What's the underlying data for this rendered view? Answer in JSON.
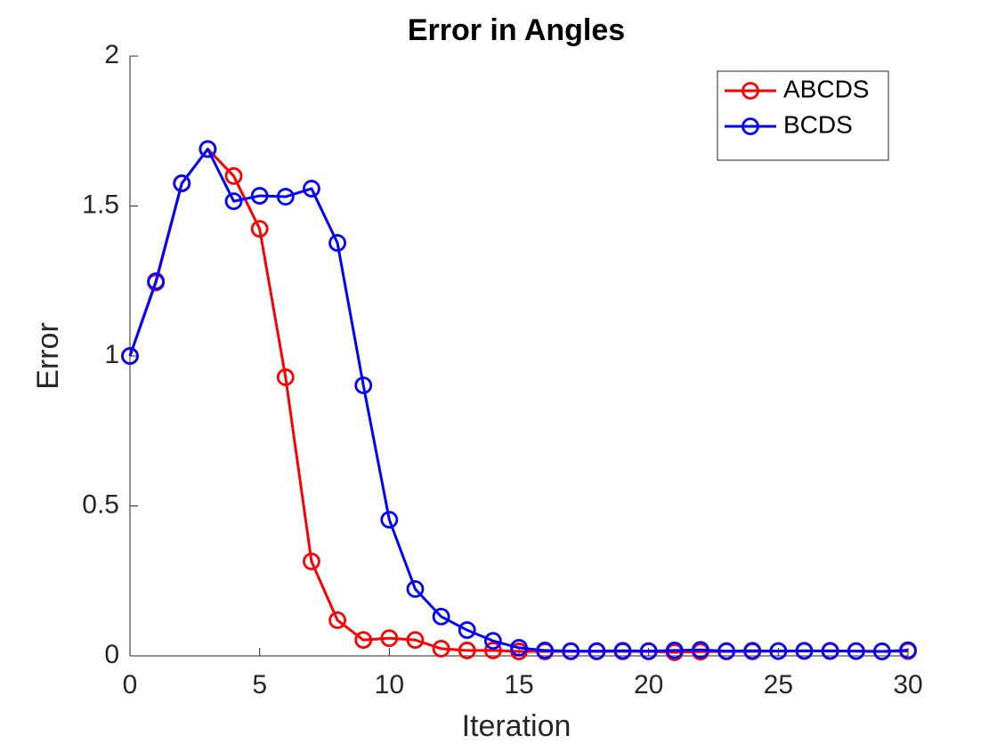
{
  "chart_data": {
    "type": "line",
    "title": "Error in Angles",
    "x_label": "Iteration",
    "y_label": "Error",
    "x": [
      0,
      1,
      2,
      3,
      4,
      5,
      6,
      7,
      8,
      9,
      10,
      11,
      12,
      13,
      14,
      15,
      16,
      17,
      18,
      19,
      20,
      21,
      22,
      23,
      24,
      25,
      26,
      27,
      28,
      29,
      30
    ],
    "series": [
      {
        "name": "ABCDS",
        "color": "#ff0000",
        "values": [
          1.0,
          1.245,
          1.575,
          1.69,
          1.6,
          1.424,
          0.929,
          0.315,
          0.119,
          0.053,
          0.059,
          0.053,
          0.024,
          0.018,
          0.018,
          0.015,
          0.015,
          0.015,
          0.015,
          0.015,
          0.015,
          0.012,
          0.014,
          0.015,
          0.015,
          0.016,
          0.016,
          0.017,
          0.016,
          0.015,
          0.016
        ]
      },
      {
        "name": "BCDS",
        "color": "#0000ff",
        "values": [
          1.0,
          1.249,
          1.576,
          1.69,
          1.516,
          1.534,
          1.531,
          1.558,
          1.377,
          0.902,
          0.454,
          0.223,
          0.131,
          0.086,
          0.05,
          0.027,
          0.018,
          0.016,
          0.016,
          0.017,
          0.016,
          0.018,
          0.02,
          0.016,
          0.017,
          0.016,
          0.017,
          0.016,
          0.016,
          0.015,
          0.019
        ]
      }
    ],
    "xlim": [
      0,
      30
    ],
    "xticks": [
      0,
      5,
      10,
      15,
      20,
      25,
      30
    ],
    "ylim": [
      0,
      2
    ],
    "yticks": [
      0,
      0.5,
      1,
      1.5,
      2
    ],
    "legend": "northeast"
  }
}
